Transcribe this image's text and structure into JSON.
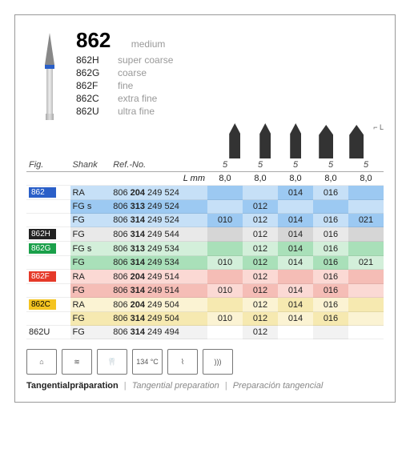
{
  "header": {
    "main_code": "862",
    "main_grit": "medium",
    "variants": [
      {
        "code": "862H",
        "desc": "super coarse"
      },
      {
        "code": "862G",
        "desc": "coarse"
      },
      {
        "code": "862F",
        "desc": "fine"
      },
      {
        "code": "862C",
        "desc": "extra fine"
      },
      {
        "code": "862U",
        "desc": "ultra fine"
      }
    ]
  },
  "tip_header_values": [
    "5",
    "5",
    "5",
    "5",
    "5"
  ],
  "columns": {
    "fig": "Fig.",
    "shank": "Shank",
    "ref": "Ref.-No.",
    "lmm": "L mm"
  },
  "lmm_row": [
    "8,0",
    "8,0",
    "8,0",
    "8,0",
    "8,0"
  ],
  "l_label": "L",
  "rows": [
    {
      "fig": "862",
      "badge_bg": "#2a5fc8",
      "badge_fg": "#fff",
      "shank": "RA",
      "ref": "806 <b>204</b> 249 524",
      "vals": [
        "",
        "",
        "014",
        "016",
        ""
      ],
      "bg": "#9cc9f2",
      "bg2": "#c6e0f7"
    },
    {
      "fig": "",
      "shank": "FG s",
      "ref": "806 <b>313</b> 249 524",
      "vals": [
        "",
        "012",
        "",
        "",
        ""
      ],
      "bg": "#c6e0f7",
      "bg2": "#9cc9f2"
    },
    {
      "fig": "",
      "shank": "FG",
      "ref": "806 <b>314</b> 249 524",
      "vals": [
        "010",
        "012",
        "014",
        "016",
        "021"
      ],
      "bg": "#9cc9f2",
      "bg2": "#c6e0f7"
    },
    {
      "fig": "862H",
      "badge_bg": "#222",
      "badge_fg": "#fff",
      "shank": "FG",
      "ref": "806 <b>314</b> 249 544",
      "vals": [
        "",
        "012",
        "014",
        "016",
        ""
      ],
      "bg": "#d6d6d6",
      "bg2": "#e9e9e9"
    },
    {
      "fig": "862G",
      "badge_bg": "#1aa04a",
      "badge_fg": "#fff",
      "shank": "FG s",
      "ref": "806 <b>313</b> 249 534",
      "vals": [
        "",
        "012",
        "014",
        "016",
        ""
      ],
      "bg": "#a9e0b9",
      "bg2": "#d3efda"
    },
    {
      "fig": "",
      "shank": "FG",
      "ref": "806 <b>314</b> 249 534",
      "vals": [
        "010",
        "012",
        "014",
        "016",
        "021"
      ],
      "bg": "#d3efda",
      "bg2": "#a9e0b9"
    },
    {
      "fig": "862F",
      "badge_bg": "#e53929",
      "badge_fg": "#fff",
      "shank": "RA",
      "ref": "806 <b>204</b> 249 514",
      "vals": [
        "",
        "012",
        "",
        "016",
        ""
      ],
      "bg": "#f5bdb6",
      "bg2": "#fbd9d4"
    },
    {
      "fig": "",
      "shank": "FG",
      "ref": "806 <b>314</b> 249 514",
      "vals": [
        "010",
        "012",
        "014",
        "016",
        ""
      ],
      "bg": "#fbd9d4",
      "bg2": "#f5bdb6"
    },
    {
      "fig": "862C",
      "badge_bg": "#f4c421",
      "badge_fg": "#000",
      "shank": "RA",
      "ref": "806 <b>204</b> 249 504",
      "vals": [
        "",
        "012",
        "014",
        "016",
        ""
      ],
      "bg": "#f6e9b0",
      "bg2": "#fbf3d3"
    },
    {
      "fig": "",
      "shank": "FG",
      "ref": "806 <b>314</b> 249 504",
      "vals": [
        "010",
        "012",
        "014",
        "016",
        ""
      ],
      "bg": "#fbf3d3",
      "bg2": "#f6e9b0"
    },
    {
      "fig": "862U",
      "badge_bg": "",
      "badge_fg": "#000",
      "shank": "FG",
      "ref": "806 <b>314</b> 249 494",
      "vals": [
        "",
        "012",
        "",
        "",
        ""
      ],
      "bg": "#fff",
      "bg2": "#f2f2f2"
    }
  ],
  "icon_labels": [
    "⌂",
    "≋",
    "🦷",
    "134 °C",
    "⌇",
    "))) "
  ],
  "footer": {
    "bold": "Tangentialpräparation",
    "it1": "Tangential preparation",
    "it2": "Preparación tangencial"
  },
  "colors": {
    "border": "#999"
  }
}
